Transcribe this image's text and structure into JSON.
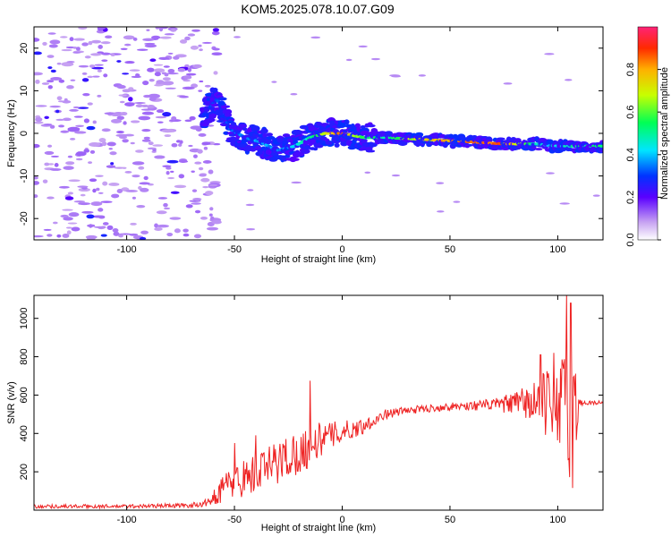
{
  "title": "KOM5.2025.078.10.07.G09",
  "chart_data": [
    {
      "type": "heatmap",
      "xlabel": "Height of straight line (km)",
      "ylabel": "Frequency (Hz)",
      "xlim": [
        -143,
        121
      ],
      "ylim": [
        -25,
        25
      ],
      "xticks": [
        -100,
        -50,
        0,
        50,
        100
      ],
      "yticks": [
        -20,
        -10,
        0,
        10,
        20
      ],
      "colorbar": {
        "label": "Normalized spectral amplitude",
        "range": [
          0,
          1
        ],
        "ticks": [
          "0.0",
          "0.2",
          "0.4",
          "0.6",
          "0.8"
        ]
      },
      "ridge": {
        "x": [
          -143,
          -80,
          -65,
          -58,
          -52,
          -45,
          -38,
          -30,
          -22,
          -15,
          -8,
          0,
          10,
          20,
          40,
          60,
          75,
          90,
          100,
          110,
          121
        ],
        "freq": [
          null,
          null,
          4,
          8,
          1,
          -1,
          -2,
          -4,
          -3,
          -1,
          0,
          0,
          -1,
          -1,
          -1.5,
          -2,
          -2.5,
          -2.5,
          -3,
          -3,
          -3
        ],
        "amplitude": [
          0,
          0,
          0.25,
          0.3,
          0.3,
          0.35,
          0.4,
          0.35,
          0.4,
          0.5,
          0.7,
          0.85,
          0.55,
          0.5,
          0.75,
          0.85,
          0.85,
          0.45,
          0.45,
          0.5,
          0.55
        ]
      }
    },
    {
      "type": "line",
      "xlabel": "Height of straight line (km)",
      "ylabel": "SNR (v/v)",
      "xlim": [
        -143,
        121
      ],
      "ylim": [
        0,
        1120
      ],
      "xticks": [
        -100,
        -50,
        0,
        50,
        100
      ],
      "yticks": [
        200,
        400,
        600,
        800,
        1000
      ],
      "color": "#ee2222",
      "envelope": {
        "x": [
          -143,
          -100,
          -70,
          -62,
          -55,
          -50,
          -45,
          -40,
          -35,
          -30,
          -25,
          -20,
          -15,
          -10,
          -5,
          0,
          5,
          10,
          15,
          20,
          30,
          40,
          50,
          60,
          70,
          80,
          85,
          90,
          95,
          100,
          103,
          106,
          108,
          110,
          112,
          121
        ],
        "base": [
          20,
          20,
          25,
          40,
          120,
          150,
          170,
          190,
          220,
          250,
          280,
          300,
          330,
          370,
          390,
          410,
          420,
          440,
          470,
          500,
          520,
          530,
          540,
          545,
          550,
          555,
          560,
          560,
          555,
          540,
          520,
          480,
          470,
          560,
          560,
          560
        ],
        "amp": [
          10,
          10,
          12,
          20,
          80,
          90,
          100,
          110,
          110,
          120,
          120,
          110,
          110,
          90,
          70,
          60,
          50,
          40,
          30,
          25,
          20,
          20,
          20,
          25,
          30,
          60,
          90,
          140,
          170,
          200,
          330,
          420,
          380,
          20,
          15,
          10
        ]
      },
      "spikes": [
        [
          -15,
          675
        ],
        [
          -50,
          350
        ],
        [
          -40,
          390
        ],
        [
          104,
          1120
        ],
        [
          106,
          1080
        ],
        [
          98,
          820
        ],
        [
          92,
          810
        ]
      ]
    }
  ]
}
